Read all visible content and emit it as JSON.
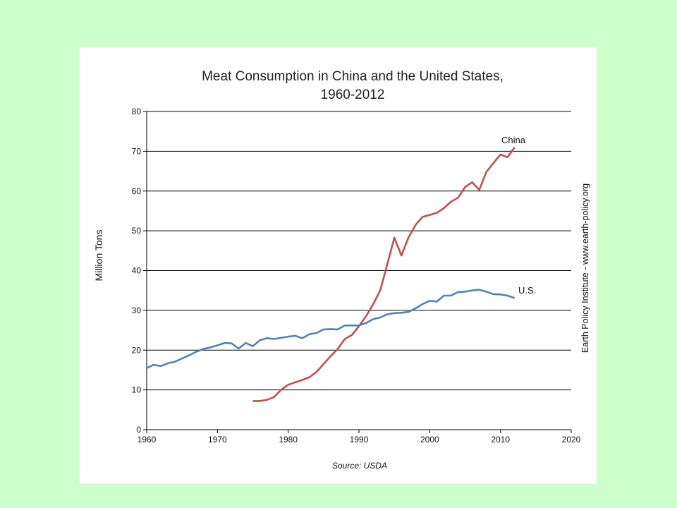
{
  "chart_data": {
    "type": "line",
    "title_line1": "Meat Consumption in China and the United States,",
    "title_line2": "1960-2012",
    "ylabel": "Million Tons",
    "xlabel": "",
    "source": "Source: USDA",
    "credit": "Earth Policy Institute - www.earth-policy.org",
    "xlim": [
      1960,
      2020
    ],
    "ylim": [
      0,
      80
    ],
    "x_ticks": [
      "1960",
      "1970",
      "1980",
      "1990",
      "2000",
      "2010",
      "2020"
    ],
    "y_ticks": [
      "0",
      "10",
      "20",
      "30",
      "40",
      "50",
      "60",
      "70",
      "80"
    ],
    "grid": "horizontal",
    "series": [
      {
        "name": "China",
        "color": "#c0504d",
        "x": [
          1975,
          1976,
          1977,
          1978,
          1979,
          1980,
          1981,
          1982,
          1983,
          1984,
          1985,
          1986,
          1987,
          1988,
          1989,
          1990,
          1991,
          1992,
          1993,
          1994,
          1995,
          1996,
          1997,
          1998,
          1999,
          2000,
          2001,
          2002,
          2003,
          2004,
          2005,
          2006,
          2007,
          2008,
          2009,
          2010,
          2011,
          2012
        ],
        "y": [
          7.2,
          7.2,
          7.5,
          8.2,
          10,
          11.3,
          11.9,
          12.5,
          13.2,
          14.5,
          16.5,
          18.5,
          20.3,
          22.8,
          23.8,
          26,
          28.5,
          31.5,
          35,
          41.5,
          48.3,
          43.8,
          48.3,
          51.5,
          53.5,
          54,
          54.5,
          55.7,
          57.3,
          58.3,
          61,
          62.2,
          60.3,
          64.8,
          67,
          69.2,
          68.5,
          71
        ]
      },
      {
        "name": "U.S.",
        "color": "#4f81bd",
        "x": [
          1960,
          1961,
          1962,
          1963,
          1964,
          1965,
          1966,
          1967,
          1968,
          1969,
          1970,
          1971,
          1972,
          1973,
          1974,
          1975,
          1976,
          1977,
          1978,
          1979,
          1980,
          1981,
          1982,
          1983,
          1984,
          1985,
          1986,
          1987,
          1988,
          1989,
          1990,
          1991,
          1992,
          1993,
          1994,
          1995,
          1996,
          1997,
          1998,
          1999,
          2000,
          2001,
          2002,
          2003,
          2004,
          2005,
          2006,
          2007,
          2008,
          2009,
          2010,
          2011,
          2012
        ],
        "y": [
          15.5,
          16.3,
          16,
          16.7,
          17.1,
          17.9,
          18.7,
          19.6,
          20.3,
          20.7,
          21.2,
          21.8,
          21.7,
          20.4,
          21.8,
          21,
          22.5,
          23,
          22.8,
          23.1,
          23.4,
          23.6,
          23,
          24,
          24.3,
          25.2,
          25.3,
          25.2,
          26.2,
          26.2,
          26.2,
          26.8,
          27.8,
          28.2,
          29,
          29.3,
          29.4,
          29.6,
          30.5,
          31.6,
          32.4,
          32.2,
          33.7,
          33.7,
          34.6,
          34.7,
          35,
          35.2,
          34.7,
          34.1,
          34,
          33.7,
          33.1
        ]
      }
    ]
  }
}
